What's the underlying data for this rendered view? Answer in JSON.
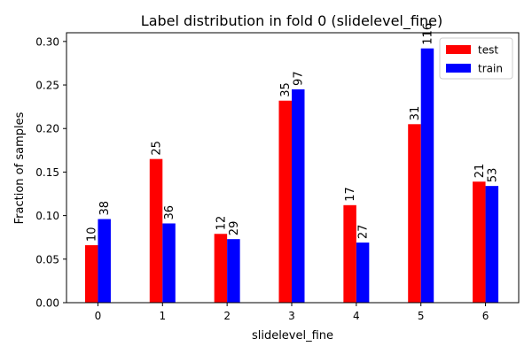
{
  "chart_data": {
    "type": "bar",
    "title": "Label distribution in fold 0 (slidelevel_fine)",
    "xlabel": "slidelevel_fine",
    "ylabel": "Fraction of samples",
    "categories": [
      "0",
      "1",
      "2",
      "3",
      "4",
      "5",
      "6"
    ],
    "ylim": [
      0,
      0.31
    ],
    "yticks": [
      "0.00",
      "0.05",
      "0.10",
      "0.15",
      "0.20",
      "0.25",
      "0.30"
    ],
    "grid": false,
    "legend_position": "top-right",
    "series": [
      {
        "name": "test",
        "color": "#ff0000",
        "values": [
          0.066,
          0.165,
          0.079,
          0.232,
          0.112,
          0.205,
          0.139
        ],
        "labels": [
          "10",
          "25",
          "12",
          "35",
          "17",
          "31",
          "21"
        ]
      },
      {
        "name": "train",
        "color": "#0000ff",
        "values": [
          0.096,
          0.091,
          0.073,
          0.245,
          0.069,
          0.292,
          0.134
        ],
        "labels": [
          "38",
          "36",
          "29",
          "97",
          "27",
          "116",
          "53"
        ]
      }
    ]
  }
}
